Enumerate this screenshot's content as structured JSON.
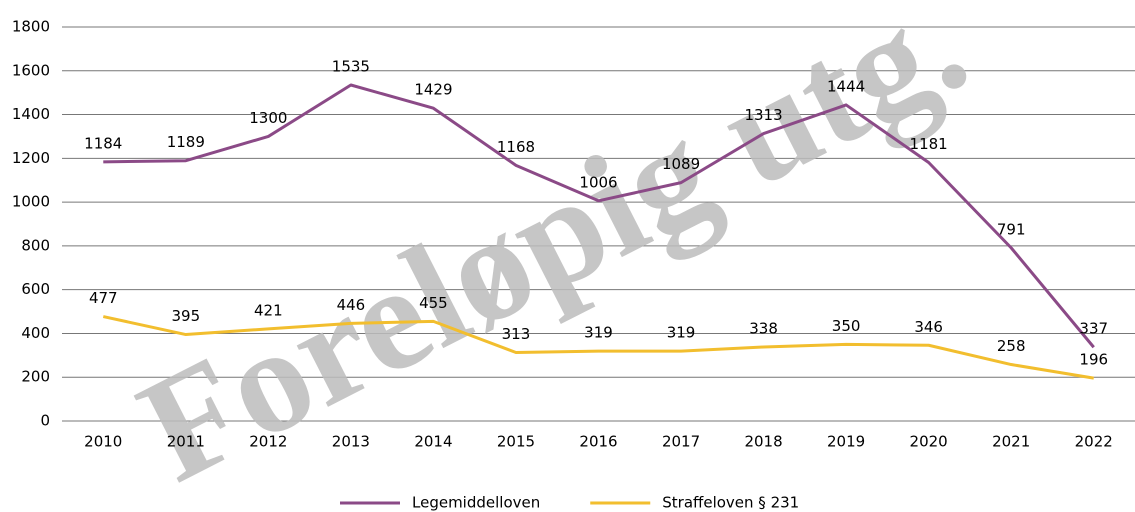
{
  "chart_data": {
    "type": "line",
    "watermark": "Foreløpig utg.",
    "categories": [
      "2010",
      "2011",
      "2012",
      "2013",
      "2014",
      "2015",
      "2016",
      "2017",
      "2018",
      "2019",
      "2020",
      "2021",
      "2022"
    ],
    "series": [
      {
        "name": "Legemiddelloven",
        "color": "#8b4a87",
        "values": [
          1184,
          1189,
          1300,
          1535,
          1429,
          1168,
          1006,
          1089,
          1313,
          1444,
          1181,
          791,
          337
        ]
      },
      {
        "name": "Straffeloven § 231",
        "color": "#f2be2e",
        "values": [
          477,
          395,
          421,
          446,
          455,
          313,
          319,
          319,
          338,
          350,
          346,
          258,
          196
        ]
      }
    ],
    "ylim": [
      0,
      1800
    ],
    "yticks": [
      0,
      200,
      400,
      600,
      800,
      1000,
      1200,
      1400,
      1600,
      1800
    ],
    "grid": true,
    "legend": "bottom"
  }
}
